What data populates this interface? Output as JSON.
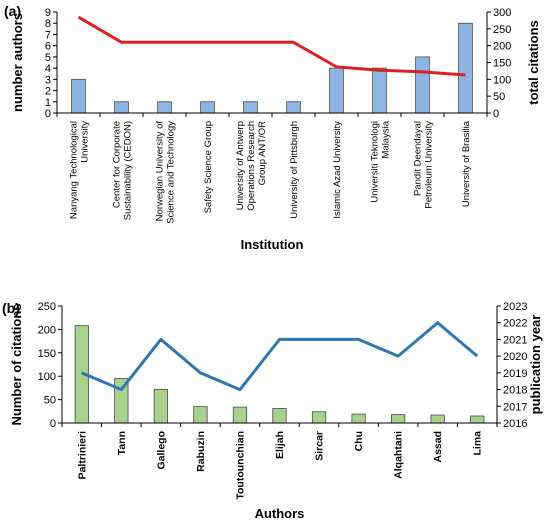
{
  "chart_data": [
    {
      "panel_label": "(a)",
      "type": "bar",
      "xlabel": "Institution",
      "ylabel": "number authors",
      "y2label": "total citations",
      "ylim": [
        0,
        9
      ],
      "y2lim": [
        0,
        300
      ],
      "yticks": [
        0,
        1,
        2,
        3,
        4,
        5,
        6,
        7,
        8,
        9
      ],
      "y2ticks": [
        0,
        50,
        100,
        150,
        200,
        250,
        300
      ],
      "bar_color": "#8DB4E2",
      "line_color": "#E02020",
      "grid": false,
      "categories": [
        [
          "Nanyang Technological",
          "University"
        ],
        [
          "Center for Corporate",
          "Sustainability (CEDON)"
        ],
        [
          "Norwegian University of",
          "Science and Technology"
        ],
        [
          "Safety Science Group"
        ],
        [
          "University of Antwerp",
          "Operations Research",
          "Group ANT/OR"
        ],
        [
          "University of Pittsburgh"
        ],
        [
          "Islamic Azad University"
        ],
        [
          "Universiti Teknologi",
          "Malaysia"
        ],
        [
          "Pandit Deendayal",
          "Petroleum University"
        ],
        [
          "University of Brasilia"
        ]
      ],
      "series": [
        {
          "type": "bar",
          "axis": "left",
          "values": [
            3,
            1,
            1,
            1,
            1,
            1,
            4,
            4,
            5,
            8
          ]
        },
        {
          "type": "line",
          "axis": "right",
          "values": [
            285,
            210,
            210,
            210,
            210,
            210,
            137,
            127,
            122,
            113
          ]
        }
      ]
    },
    {
      "panel_label": "(b)",
      "type": "bar",
      "xlabel": "Authors",
      "ylabel": "Number of citations",
      "y2label": "publication year",
      "ylim": [
        0,
        250
      ],
      "y2lim": [
        2016,
        2023
      ],
      "yticks": [
        0,
        50,
        100,
        150,
        200,
        250
      ],
      "y2ticks": [
        2016,
        2017,
        2018,
        2019,
        2020,
        2021,
        2022,
        2023
      ],
      "bar_color": "#A9D18E",
      "line_color": "#2E75B6",
      "grid": false,
      "categories": [
        "Paltrinieri",
        "Tann",
        "Gallego",
        "Rabuzin",
        "Toutounchian",
        "Elijah",
        "Sircar",
        "Chu",
        "Alqahtani",
        "Assad",
        "Lima"
      ],
      "series": [
        {
          "type": "bar",
          "axis": "left",
          "values": [
            208,
            95,
            72,
            35,
            34,
            31,
            24,
            19,
            18,
            17,
            15
          ]
        },
        {
          "type": "line",
          "axis": "right",
          "values": [
            2019,
            2018,
            2021,
            2019,
            2018,
            2021,
            2021,
            2021,
            2020,
            2022,
            2020
          ]
        }
      ]
    }
  ]
}
